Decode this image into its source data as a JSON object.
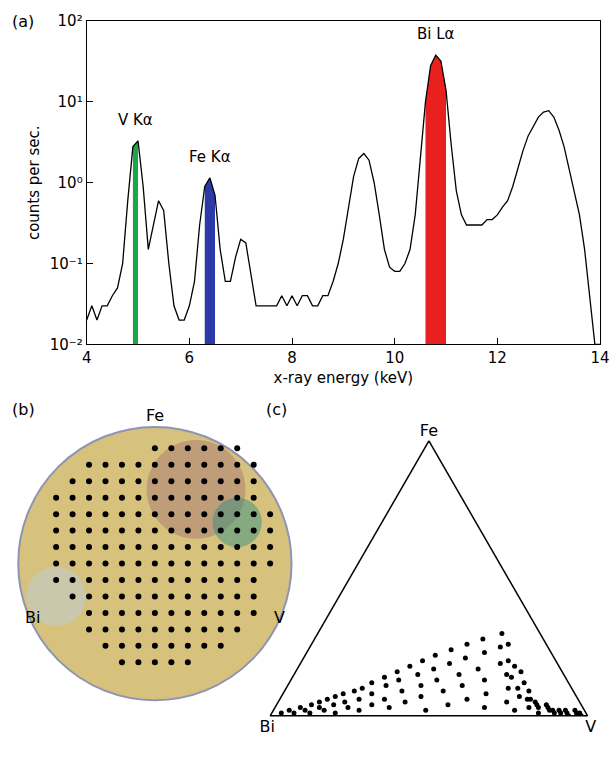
{
  "chart_data": [
    {
      "panel": "(a)",
      "type": "line",
      "color": "#000000",
      "xlabel": "x-ray energy (keV)",
      "ylabel": "counts per sec.",
      "xlim": [
        4,
        14
      ],
      "xticks": [
        4,
        6,
        8,
        10,
        12,
        14
      ],
      "ylim": [
        0.01,
        100
      ],
      "yticks": [
        {
          "value": 0.01,
          "label": "10⁻²"
        },
        {
          "value": 0.1,
          "label": "10⁻¹"
        },
        {
          "value": 1,
          "label": "10⁰"
        },
        {
          "value": 10,
          "label": "10¹"
        },
        {
          "value": 100,
          "label": "10²"
        }
      ],
      "log": "y",
      "grid": false,
      "x": [
        4.0,
        4.1,
        4.2,
        4.3,
        4.4,
        4.5,
        4.6,
        4.7,
        4.8,
        4.9,
        5.0,
        5.1,
        5.2,
        5.3,
        5.4,
        5.5,
        5.6,
        5.7,
        5.8,
        5.9,
        6.0,
        6.1,
        6.2,
        6.3,
        6.4,
        6.5,
        6.6,
        6.7,
        6.8,
        6.9,
        7.0,
        7.1,
        7.2,
        7.3,
        7.4,
        7.5,
        7.6,
        7.7,
        7.8,
        7.9,
        8.0,
        8.1,
        8.2,
        8.3,
        8.4,
        8.5,
        8.6,
        8.7,
        8.8,
        8.9,
        9.0,
        9.1,
        9.2,
        9.3,
        9.4,
        9.5,
        9.6,
        9.7,
        9.8,
        9.9,
        10.0,
        10.1,
        10.2,
        10.3,
        10.4,
        10.5,
        10.6,
        10.7,
        10.8,
        10.9,
        11.0,
        11.1,
        11.2,
        11.3,
        11.4,
        11.5,
        11.6,
        11.7,
        11.8,
        11.9,
        12.0,
        12.1,
        12.2,
        12.3,
        12.4,
        12.5,
        12.6,
        12.7,
        12.8,
        12.9,
        13.0,
        13.1,
        13.2,
        13.3,
        13.4,
        13.5,
        13.6,
        13.7,
        13.8,
        13.9,
        14.0
      ],
      "values": [
        0.02,
        0.03,
        0.02,
        0.03,
        0.03,
        0.04,
        0.05,
        0.1,
        0.6,
        2.8,
        3.3,
        0.9,
        0.15,
        0.3,
        0.6,
        0.45,
        0.1,
        0.03,
        0.02,
        0.02,
        0.03,
        0.06,
        0.3,
        0.9,
        1.15,
        0.7,
        0.15,
        0.06,
        0.06,
        0.12,
        0.2,
        0.18,
        0.07,
        0.03,
        0.03,
        0.03,
        0.03,
        0.03,
        0.04,
        0.03,
        0.04,
        0.03,
        0.04,
        0.04,
        0.03,
        0.03,
        0.04,
        0.04,
        0.06,
        0.1,
        0.2,
        0.5,
        1.2,
        2.0,
        2.3,
        1.9,
        1.0,
        0.4,
        0.15,
        0.09,
        0.08,
        0.08,
        0.1,
        0.15,
        0.4,
        2,
        10,
        28,
        38,
        32,
        14,
        3,
        0.8,
        0.4,
        0.3,
        0.3,
        0.3,
        0.3,
        0.35,
        0.35,
        0.4,
        0.5,
        0.6,
        0.9,
        1.5,
        2.5,
        3.8,
        5,
        6.5,
        7.5,
        7.8,
        6.5,
        4.5,
        2.8,
        1.5,
        0.8,
        0.4,
        0.15,
        0.04,
        0.01,
        0.01
      ],
      "bands": [
        {
          "label": "V Kα",
          "range": [
            4.9,
            5.0
          ],
          "color": "#1aa64a"
        },
        {
          "label": "Fe Kα",
          "range": [
            6.3,
            6.5
          ],
          "color": "#2b3aa6"
        },
        {
          "label": "Bi Lα",
          "range": [
            10.6,
            11.0
          ],
          "color": "#e8211f"
        }
      ]
    },
    {
      "panel": "(b)",
      "type": "wafer_map",
      "color": "#000000",
      "marker": "circle",
      "tick_labels": false,
      "labels": {
        "top": "Fe",
        "left": "Bi",
        "right": "V"
      },
      "radius": 8.3,
      "xlim": [
        -8.8,
        8.8
      ],
      "ylim": [
        -8.8,
        8.8
      ],
      "rows": [
        {
          "y": 7,
          "x": [
            0,
            1,
            2,
            3,
            4,
            5
          ]
        },
        {
          "y": 6,
          "x": [
            -4,
            -3,
            -2,
            -1,
            0,
            1,
            2,
            3,
            4,
            5,
            6
          ]
        },
        {
          "y": 5,
          "x": [
            -5,
            -4,
            -3,
            -2,
            -1,
            0,
            1,
            2,
            3,
            4,
            5,
            6
          ]
        },
        {
          "y": 4,
          "x": [
            -6,
            -5,
            -4,
            -3,
            -2,
            -1,
            0,
            1,
            2,
            3,
            4,
            5,
            6
          ]
        },
        {
          "y": 3,
          "x": [
            -6,
            -5,
            -4,
            -3,
            -2,
            -1,
            0,
            1,
            2,
            3,
            4,
            5,
            6,
            7
          ]
        },
        {
          "y": 2,
          "x": [
            -6,
            -5,
            -4,
            -3,
            -2,
            -1,
            0,
            1,
            2,
            3,
            4,
            5,
            6,
            7
          ]
        },
        {
          "y": 1,
          "x": [
            -6,
            -5,
            -4,
            -3,
            -2,
            -1,
            0,
            1,
            2,
            3,
            4,
            5,
            6,
            7
          ]
        },
        {
          "y": 0,
          "x": [
            -6,
            -5,
            -4,
            -3,
            -2,
            -1,
            0,
            1,
            2,
            3,
            4,
            5,
            6,
            7
          ]
        },
        {
          "y": -1,
          "x": [
            -6,
            -5,
            -4,
            -3,
            -2,
            -1,
            0,
            1,
            2,
            3,
            4,
            5,
            6
          ]
        },
        {
          "y": -2,
          "x": [
            -5,
            -4,
            -3,
            -2,
            -1,
            0,
            1,
            2,
            3,
            4,
            5,
            6
          ]
        },
        {
          "y": -3,
          "x": [
            -4,
            -3,
            -2,
            -1,
            0,
            1,
            2,
            3,
            4,
            5,
            6
          ]
        },
        {
          "y": -4,
          "x": [
            -4,
            -3,
            -2,
            -1,
            0,
            1,
            2,
            3,
            4,
            5
          ]
        },
        {
          "y": -5,
          "x": [
            -3,
            -2,
            -1,
            0,
            1,
            2,
            3,
            4
          ]
        },
        {
          "y": -6,
          "x": [
            -2,
            -1,
            0,
            1,
            2
          ]
        }
      ]
    },
    {
      "panel": "(c)",
      "type": "ternary",
      "color": "#000000",
      "marker": "circle",
      "tick_labels": false,
      "axes": [
        "Fe",
        "Bi",
        "V"
      ],
      "sum": 100,
      "Fe": [
        1,
        2,
        1,
        3,
        2,
        4,
        1,
        5,
        3,
        6,
        2,
        7,
        4,
        8,
        1,
        5,
        9,
        3,
        10,
        6,
        12,
        2,
        8,
        14,
        4,
        11,
        16,
        6,
        13,
        18,
        3,
        9,
        20,
        15,
        5,
        22,
        11,
        17,
        7,
        24,
        13,
        19,
        2,
        26,
        9,
        21,
        15,
        28,
        4,
        11,
        23,
        17,
        30,
        6,
        25,
        13,
        26,
        19,
        8,
        20,
        3,
        15,
        18,
        14,
        10,
        16,
        5,
        10,
        12,
        7,
        2,
        9,
        6,
        6,
        3,
        5,
        4,
        3,
        1,
        4,
        3,
        2,
        2,
        1,
        2,
        1,
        2,
        1,
        0,
        2,
        1,
        1,
        0
      ],
      "Bi": [
        96,
        93,
        92,
        89,
        88,
        85,
        87,
        82,
        83,
        79,
        82,
        76,
        78,
        73,
        79,
        74,
        69,
        74,
        66,
        69,
        62,
        71,
        64,
        57,
        66,
        58,
        52,
        61,
        53,
        47,
        61,
        54,
        42,
        46,
        55,
        37,
        47,
        40,
        49,
        31,
        41,
        34,
        50,
        25,
        41,
        28,
        33,
        19,
        42,
        34,
        21,
        26,
        12,
        35,
        15,
        26,
        12,
        18,
        28,
        15,
        31,
        18,
        14,
        17,
        20,
        13,
        23,
        17,
        14,
        18,
        22,
        14,
        16,
        15,
        17,
        14,
        14,
        14,
        15,
        11,
        11,
        11,
        10,
        10,
        8,
        8,
        6,
        6,
        6,
        3,
        3,
        2,
        2
      ],
      "V": [
        3,
        5,
        7,
        8,
        10,
        11,
        12,
        13,
        14,
        15,
        16,
        17,
        18,
        19,
        20,
        21,
        22,
        23,
        24,
        25,
        26,
        27,
        28,
        29,
        30,
        31,
        32,
        33,
        34,
        35,
        36,
        37,
        38,
        39,
        40,
        41,
        42,
        43,
        44,
        45,
        46,
        47,
        48,
        49,
        50,
        51,
        52,
        53,
        54,
        55,
        56,
        57,
        58,
        59,
        60,
        61,
        62,
        63,
        64,
        65,
        66,
        67,
        68,
        69,
        70,
        71,
        72,
        73,
        74,
        75,
        76,
        77,
        78,
        79,
        80,
        81,
        82,
        83,
        84,
        85,
        86,
        87,
        88,
        89,
        90,
        91,
        92,
        93,
        94,
        95,
        96,
        97,
        98
      ]
    }
  ]
}
